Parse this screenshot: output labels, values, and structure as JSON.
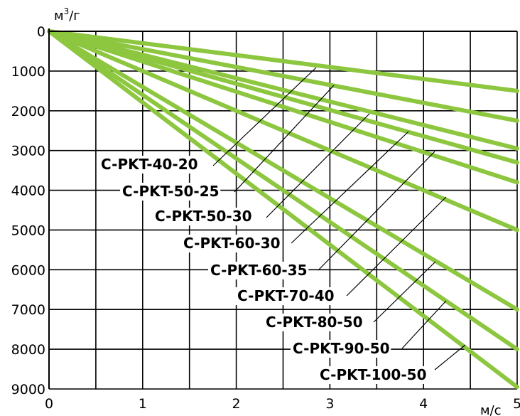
{
  "chart_data": {
    "type": "line",
    "ylabel": "м",
    "ylabel_sup": "3",
    "ylabel_suffix": "/г",
    "xlabel": "м/с",
    "xlim": [
      0,
      5
    ],
    "ylim": [
      0,
      9000
    ],
    "y_inverted": true,
    "x_ticks": [
      "0",
      "1",
      "2",
      "3",
      "4",
      "5"
    ],
    "y_ticks": [
      "0",
      "1000",
      "2000",
      "3000",
      "4000",
      "5000",
      "6000",
      "7000",
      "8000",
      "9000"
    ],
    "grid": true,
    "line_color": "#8dc63f",
    "series": [
      {
        "name": "C-PKT-40-20",
        "x": [
          0,
          5
        ],
        "y": [
          0,
          1500
        ]
      },
      {
        "name": "C-PKT-50-25",
        "x": [
          0,
          5
        ],
        "y": [
          0,
          2250
        ]
      },
      {
        "name": "C-PKT-50-30",
        "x": [
          0,
          5
        ],
        "y": [
          0,
          2950
        ]
      },
      {
        "name": "C-PKT-60-30",
        "x": [
          0,
          5
        ],
        "y": [
          0,
          3300
        ]
      },
      {
        "name": "C-PKT-60-35",
        "x": [
          0,
          5
        ],
        "y": [
          0,
          3800
        ]
      },
      {
        "name": "C-PKT-70-40",
        "x": [
          0,
          5
        ],
        "y": [
          0,
          5000
        ]
      },
      {
        "name": "C-PKT-80-50",
        "x": [
          0,
          5
        ],
        "y": [
          0,
          7000
        ]
      },
      {
        "name": "C-PKT-90-50",
        "x": [
          0,
          5
        ],
        "y": [
          0,
          8000
        ]
      },
      {
        "name": "C-PKT-100-50",
        "x": [
          0,
          5
        ],
        "y": [
          0,
          8950
        ]
      }
    ]
  }
}
